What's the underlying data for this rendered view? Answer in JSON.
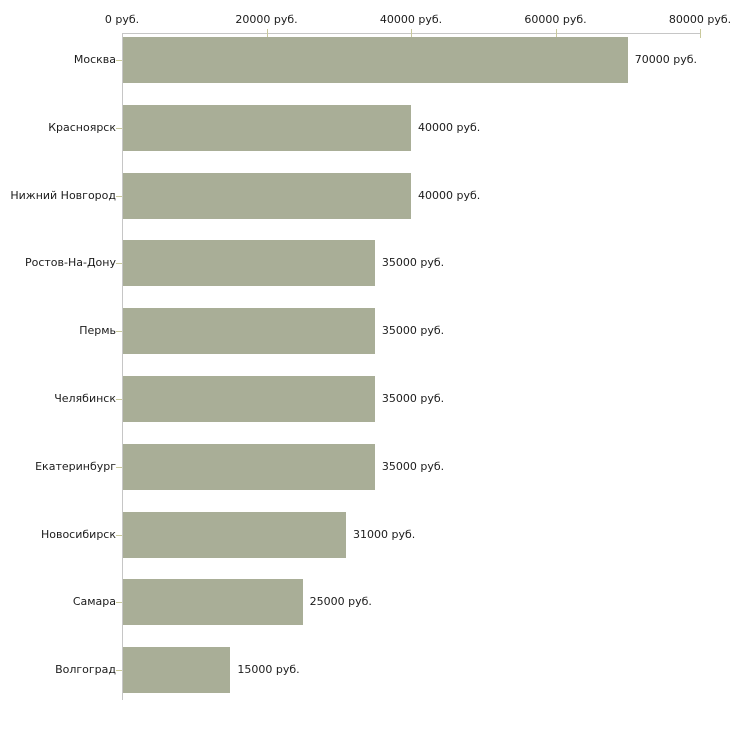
{
  "chart_data": {
    "type": "bar",
    "orientation": "horizontal",
    "title": "",
    "categories": [
      "Москва",
      "Красноярск",
      "Нижний Новгород",
      "Ростов-На-Дону",
      "Пермь",
      "Челябинск",
      "Екатеринбург",
      "Новосибирск",
      "Самара",
      "Волгоград"
    ],
    "values": [
      70000,
      40000,
      40000,
      35000,
      35000,
      35000,
      35000,
      31000,
      25000,
      15000
    ],
    "value_labels": [
      "70000 руб.",
      "40000 руб.",
      "40000 руб.",
      "35000 руб.",
      "35000 руб.",
      "35000 руб.",
      "35000 руб.",
      "31000 руб.",
      "25000 руб.",
      "15000 руб."
    ],
    "xlabel": "",
    "ylabel": "",
    "unit": "руб.",
    "x_axis": {
      "position": "top",
      "min": 0,
      "max": 80000,
      "ticks": [
        0,
        20000,
        40000,
        60000,
        80000
      ],
      "tick_labels": [
        "0 руб.",
        "20000 руб.",
        "40000 руб.",
        "60000 руб.",
        "80000 руб."
      ]
    },
    "grid": false,
    "legend": "none",
    "colors": {
      "bar": "#a9ae97",
      "axis_line": "#c6c6c6",
      "tick": "#c9c99c",
      "text": "#1c1c1c",
      "background": "#ffffff"
    }
  }
}
